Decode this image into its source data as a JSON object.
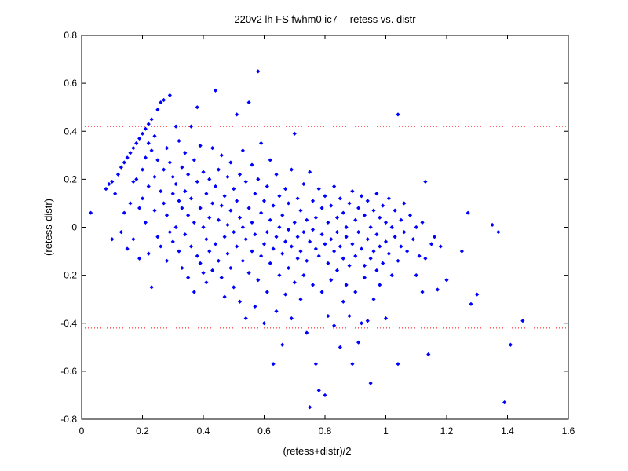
{
  "chart_data": {
    "type": "scatter",
    "title": "220v2 lh FS fwhm0 ic7 -- retess vs. distr",
    "xlabel": "(retess+distr)/2",
    "ylabel": "(retess-distr)",
    "xlim": [
      0,
      1.6
    ],
    "ylim": [
      -0.8,
      0.8
    ],
    "xticks": [
      0,
      0.2,
      0.4,
      0.6,
      0.8,
      1,
      1.2,
      1.4,
      1.6
    ],
    "xtick_labels": [
      "0",
      "0.2",
      "0.4",
      "0.6",
      "0.8",
      "1",
      "1.2",
      "1.4",
      "1.6"
    ],
    "yticks": [
      -0.8,
      -0.6,
      -0.4,
      -0.2,
      0,
      0.2,
      0.4,
      0.6,
      0.8
    ],
    "ytick_labels": [
      "-0.8",
      "-0.6",
      "-0.4",
      "-0.2",
      "0",
      "0.2",
      "0.4",
      "0.6",
      "0.8"
    ],
    "grid": false,
    "reference_lines": [
      {
        "y": 0.42,
        "style": "dotted",
        "color": "#ff0000"
      },
      {
        "y": -0.42,
        "style": "dotted",
        "color": "#ff0000"
      }
    ],
    "marker_color": "#0000ff",
    "points": [
      [
        0.03,
        0.06
      ],
      [
        0.08,
        0.16
      ],
      [
        0.09,
        0.18
      ],
      [
        0.1,
        0.19
      ],
      [
        0.1,
        -0.05
      ],
      [
        0.11,
        0.14
      ],
      [
        0.12,
        0.22
      ],
      [
        0.13,
        0.25
      ],
      [
        0.13,
        -0.02
      ],
      [
        0.14,
        0.27
      ],
      [
        0.14,
        0.06
      ],
      [
        0.15,
        0.29
      ],
      [
        0.15,
        -0.09
      ],
      [
        0.16,
        0.31
      ],
      [
        0.16,
        0.1
      ],
      [
        0.17,
        0.33
      ],
      [
        0.17,
        0.19
      ],
      [
        0.17,
        -0.05
      ],
      [
        0.18,
        0.35
      ],
      [
        0.18,
        0.2
      ],
      [
        0.19,
        0.37
      ],
      [
        0.19,
        0.08
      ],
      [
        0.19,
        -0.13
      ],
      [
        0.2,
        0.39
      ],
      [
        0.2,
        0.24
      ],
      [
        0.2,
        0.12
      ],
      [
        0.21,
        0.41
      ],
      [
        0.21,
        0.29
      ],
      [
        0.21,
        0.02
      ],
      [
        0.22,
        0.43
      ],
      [
        0.22,
        0.35
      ],
      [
        0.22,
        0.17
      ],
      [
        0.22,
        -0.11
      ],
      [
        0.23,
        0.45
      ],
      [
        0.23,
        0.32
      ],
      [
        0.23,
        -0.25
      ],
      [
        0.24,
        0.38
      ],
      [
        0.24,
        0.21
      ],
      [
        0.24,
        0.07
      ],
      [
        0.25,
        0.49
      ],
      [
        0.25,
        0.28
      ],
      [
        0.25,
        -0.04
      ],
      [
        0.26,
        0.52
      ],
      [
        0.26,
        0.15
      ],
      [
        0.26,
        -0.08
      ],
      [
        0.27,
        0.53
      ],
      [
        0.27,
        0.24
      ],
      [
        0.27,
        0.1
      ],
      [
        0.28,
        0.33
      ],
      [
        0.28,
        0.05
      ],
      [
        0.28,
        -0.14
      ],
      [
        0.29,
        0.55
      ],
      [
        0.29,
        0.27
      ],
      [
        0.29,
        -0.02
      ],
      [
        0.3,
        0.21
      ],
      [
        0.3,
        0.14
      ],
      [
        0.3,
        -0.06
      ],
      [
        0.31,
        0.42
      ],
      [
        0.31,
        0.18
      ],
      [
        0.31,
        0.0
      ],
      [
        0.32,
        0.36
      ],
      [
        0.32,
        0.11
      ],
      [
        0.32,
        -0.1
      ],
      [
        0.33,
        0.25
      ],
      [
        0.33,
        0.08
      ],
      [
        0.33,
        -0.17
      ],
      [
        0.34,
        0.31
      ],
      [
        0.34,
        0.15
      ],
      [
        0.34,
        -0.03
      ],
      [
        0.35,
        0.22
      ],
      [
        0.35,
        0.05
      ],
      [
        0.35,
        -0.21
      ],
      [
        0.36,
        0.42
      ],
      [
        0.36,
        0.12
      ],
      [
        0.36,
        -0.08
      ],
      [
        0.37,
        0.28
      ],
      [
        0.37,
        0.02
      ],
      [
        0.37,
        -0.27
      ],
      [
        0.38,
        0.5
      ],
      [
        0.38,
        0.19
      ],
      [
        0.38,
        -0.12
      ],
      [
        0.39,
        0.34
      ],
      [
        0.39,
        0.08
      ],
      [
        0.39,
        -0.15
      ],
      [
        0.4,
        0.23
      ],
      [
        0.4,
        0.0
      ],
      [
        0.4,
        -0.19
      ],
      [
        0.41,
        0.14
      ],
      [
        0.41,
        -0.05
      ],
      [
        0.41,
        -0.23
      ],
      [
        0.42,
        0.2
      ],
      [
        0.42,
        0.04
      ],
      [
        0.42,
        -0.1
      ],
      [
        0.43,
        0.33
      ],
      [
        0.43,
        0.1
      ],
      [
        0.43,
        -0.18
      ],
      [
        0.44,
        0.57
      ],
      [
        0.44,
        0.17
      ],
      [
        0.44,
        -0.07
      ],
      [
        0.45,
        0.24
      ],
      [
        0.45,
        0.03
      ],
      [
        0.45,
        -0.14
      ],
      [
        0.46,
        0.3
      ],
      [
        0.46,
        0.09
      ],
      [
        0.46,
        -0.21
      ],
      [
        0.47,
        0.13
      ],
      [
        0.47,
        -0.04
      ],
      [
        0.47,
        -0.29
      ],
      [
        0.48,
        0.21
      ],
      [
        0.48,
        0.01
      ],
      [
        0.48,
        -0.11
      ],
      [
        0.49,
        0.27
      ],
      [
        0.49,
        0.07
      ],
      [
        0.49,
        -0.17
      ],
      [
        0.5,
        0.16
      ],
      [
        0.5,
        -0.02
      ],
      [
        0.5,
        -0.25
      ],
      [
        0.51,
        0.47
      ],
      [
        0.51,
        0.11
      ],
      [
        0.51,
        -0.08
      ],
      [
        0.52,
        0.22
      ],
      [
        0.52,
        0.04
      ],
      [
        0.52,
        -0.31
      ],
      [
        0.53,
        0.32
      ],
      [
        0.53,
        0.0
      ],
      [
        0.53,
        -0.14
      ],
      [
        0.54,
        0.19
      ],
      [
        0.54,
        -0.05
      ],
      [
        0.54,
        -0.38
      ],
      [
        0.55,
        0.52
      ],
      [
        0.55,
        0.08
      ],
      [
        0.55,
        -0.19
      ],
      [
        0.56,
        0.26
      ],
      [
        0.56,
        0.02
      ],
      [
        0.56,
        -0.1
      ],
      [
        0.57,
        0.14
      ],
      [
        0.57,
        -0.03
      ],
      [
        0.57,
        -0.33
      ],
      [
        0.58,
        0.65
      ],
      [
        0.58,
        0.2
      ],
      [
        0.58,
        -0.22
      ],
      [
        0.59,
        0.35
      ],
      [
        0.59,
        0.06
      ],
      [
        0.59,
        -0.12
      ],
      [
        0.6,
        0.11
      ],
      [
        0.6,
        -0.07
      ],
      [
        0.6,
        -0.4
      ],
      [
        0.61,
        0.17
      ],
      [
        0.61,
        -0.02
      ],
      [
        0.61,
        -0.27
      ],
      [
        0.62,
        0.28
      ],
      [
        0.62,
        0.03
      ],
      [
        0.62,
        -0.15
      ],
      [
        0.63,
        0.09
      ],
      [
        0.63,
        -0.09
      ],
      [
        0.63,
        -0.57
      ],
      [
        0.64,
        0.22
      ],
      [
        0.64,
        -0.04
      ],
      [
        0.64,
        -0.35
      ],
      [
        0.65,
        0.13
      ],
      [
        0.65,
        0.0
      ],
      [
        0.65,
        -0.2
      ],
      [
        0.66,
        0.05
      ],
      [
        0.66,
        -0.11
      ],
      [
        0.66,
        -0.49
      ],
      [
        0.67,
        0.16
      ],
      [
        0.67,
        -0.06
      ],
      [
        0.67,
        -0.28
      ],
      [
        0.68,
        0.1
      ],
      [
        0.68,
        -0.01
      ],
      [
        0.68,
        -0.17
      ],
      [
        0.69,
        0.24
      ],
      [
        0.69,
        -0.08
      ],
      [
        0.69,
        -0.38
      ],
      [
        0.7,
        0.39
      ],
      [
        0.7,
        0.02
      ],
      [
        0.7,
        -0.23
      ],
      [
        0.71,
        0.12
      ],
      [
        0.71,
        -0.04
      ],
      [
        0.71,
        -0.13
      ],
      [
        0.72,
        0.07
      ],
      [
        0.72,
        -0.1
      ],
      [
        0.72,
        -0.3
      ],
      [
        0.73,
        0.18
      ],
      [
        0.73,
        -0.02
      ],
      [
        0.73,
        -0.2
      ],
      [
        0.74,
        0.03
      ],
      [
        0.74,
        -0.14
      ],
      [
        0.74,
        -0.44
      ],
      [
        0.75,
        0.23
      ],
      [
        0.75,
        -0.06
      ],
      [
        0.75,
        -0.75
      ],
      [
        0.76,
        0.11
      ],
      [
        0.76,
        -0.01
      ],
      [
        0.76,
        -0.24
      ],
      [
        0.77,
        0.04
      ],
      [
        0.77,
        -0.09
      ],
      [
        0.77,
        -0.57
      ],
      [
        0.78,
        0.16
      ],
      [
        0.78,
        -0.12
      ],
      [
        0.78,
        -0.68
      ],
      [
        0.79,
        0.08
      ],
      [
        0.79,
        -0.03
      ],
      [
        0.79,
        -0.27
      ],
      [
        0.8,
        0.13
      ],
      [
        0.8,
        -0.07
      ],
      [
        0.8,
        -0.7
      ],
      [
        0.81,
        0.02
      ],
      [
        0.81,
        -0.15
      ],
      [
        0.81,
        -0.37
      ],
      [
        0.82,
        0.09
      ],
      [
        0.82,
        -0.05
      ],
      [
        0.82,
        -0.22
      ],
      [
        0.83,
        0.17
      ],
      [
        0.83,
        -0.1
      ],
      [
        0.83,
        -0.41
      ],
      [
        0.84,
        0.04
      ],
      [
        0.84,
        -0.02
      ],
      [
        0.84,
        -0.18
      ],
      [
        0.85,
        0.12
      ],
      [
        0.85,
        -0.08
      ],
      [
        0.85,
        -0.5
      ],
      [
        0.86,
        0.06
      ],
      [
        0.86,
        -0.13
      ],
      [
        0.86,
        -0.31
      ],
      [
        0.87,
        0.0
      ],
      [
        0.87,
        -0.04
      ],
      [
        0.87,
        -0.24
      ],
      [
        0.88,
        0.1
      ],
      [
        0.88,
        -0.16
      ],
      [
        0.88,
        -0.37
      ],
      [
        0.89,
        0.15
      ],
      [
        0.89,
        -0.07
      ],
      [
        0.89,
        -0.57
      ],
      [
        0.9,
        0.03
      ],
      [
        0.9,
        -0.12
      ],
      [
        0.9,
        -0.27
      ],
      [
        0.91,
        0.08
      ],
      [
        0.91,
        -0.02
      ],
      [
        0.91,
        -0.48
      ],
      [
        0.92,
        0.13
      ],
      [
        0.92,
        -0.09
      ],
      [
        0.92,
        -0.4
      ],
      [
        0.93,
        0.05
      ],
      [
        0.93,
        -0.16
      ],
      [
        0.93,
        -0.21
      ],
      [
        0.94,
        0.11
      ],
      [
        0.94,
        -0.05
      ],
      [
        0.94,
        -0.39
      ],
      [
        0.95,
        0.0
      ],
      [
        0.95,
        -0.13
      ],
      [
        0.95,
        -0.65
      ],
      [
        0.96,
        0.07
      ],
      [
        0.96,
        -0.1
      ],
      [
        0.96,
        -0.3
      ],
      [
        0.97,
        0.14
      ],
      [
        0.97,
        -0.03
      ],
      [
        0.97,
        -0.18
      ],
      [
        0.98,
        0.04
      ],
      [
        0.98,
        -0.08
      ],
      [
        0.98,
        -0.24
      ],
      [
        0.99,
        0.09
      ],
      [
        0.99,
        -0.15
      ],
      [
        1.0,
        0.02
      ],
      [
        1.0,
        -0.06
      ],
      [
        1.0,
        -0.38
      ],
      [
        1.01,
        0.12
      ],
      [
        1.01,
        -0.11
      ],
      [
        1.02,
        0.0
      ],
      [
        1.02,
        -0.2
      ],
      [
        1.03,
        0.07
      ],
      [
        1.03,
        -0.04
      ],
      [
        1.04,
        0.47
      ],
      [
        1.04,
        -0.14
      ],
      [
        1.04,
        -0.57
      ],
      [
        1.05,
        0.03
      ],
      [
        1.05,
        -0.08
      ],
      [
        1.06,
        0.1
      ],
      [
        1.06,
        -0.02
      ],
      [
        1.07,
        -0.1
      ],
      [
        1.08,
        0.05
      ],
      [
        1.09,
        -0.05
      ],
      [
        1.1,
        0.0
      ],
      [
        1.1,
        -0.2
      ],
      [
        1.11,
        -0.12
      ],
      [
        1.12,
        0.02
      ],
      [
        1.12,
        -0.27
      ],
      [
        1.13,
        0.19
      ],
      [
        1.13,
        -0.13
      ],
      [
        1.14,
        -0.53
      ],
      [
        1.15,
        -0.07
      ],
      [
        1.16,
        -0.04
      ],
      [
        1.17,
        -0.26
      ],
      [
        1.18,
        -0.08
      ],
      [
        1.2,
        -0.22
      ],
      [
        1.25,
        -0.1
      ],
      [
        1.27,
        0.06
      ],
      [
        1.28,
        -0.32
      ],
      [
        1.3,
        -0.28
      ],
      [
        1.35,
        0.01
      ],
      [
        1.37,
        -0.02
      ],
      [
        1.39,
        -0.73
      ],
      [
        1.41,
        -0.49
      ],
      [
        1.45,
        -0.39
      ]
    ]
  }
}
